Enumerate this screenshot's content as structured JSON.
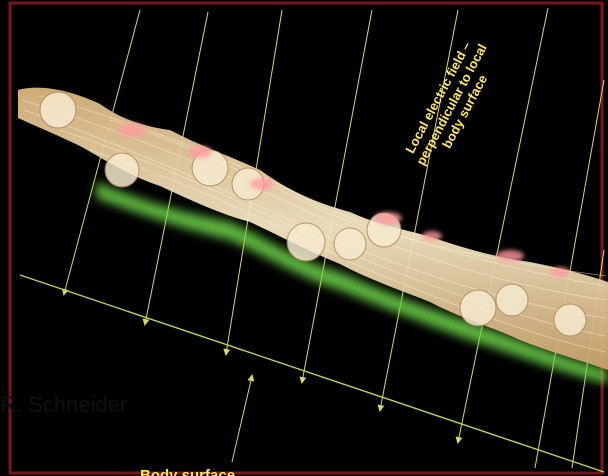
{
  "labels": {
    "field_line1": "Local electric field –",
    "field_line2": "perpendicular to local",
    "field_line3": "body surface",
    "surface": "Body surface"
  },
  "credit": "R. Schneider",
  "colors": {
    "background": "#000000",
    "frame": "#7a1518",
    "field_lines": "#d9d66a",
    "surface_line": "#b6d94a",
    "label_text": "#ffe75a",
    "flow_main": "#e8d4a2",
    "flow_pink": "#ff9aa0",
    "flow_green": "#8be063"
  }
}
